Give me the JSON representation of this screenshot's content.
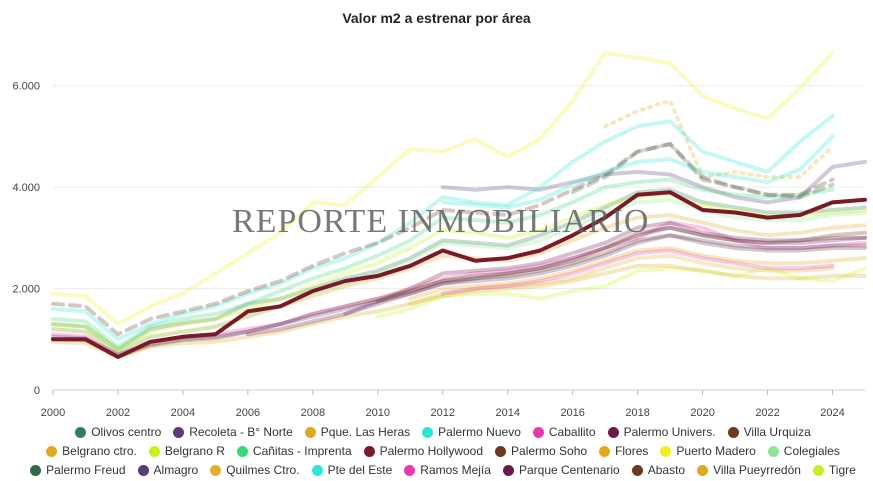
{
  "chart_data": {
    "type": "line",
    "title": "Valor m2 a estrenar por área",
    "watermark": "REPORTE INMOBILIARIO",
    "xlabel": "",
    "ylabel": "",
    "xlim": [
      2000,
      2025
    ],
    "ylim": [
      0,
      7000
    ],
    "x_ticks": [
      2000,
      2002,
      2004,
      2006,
      2008,
      2010,
      2012,
      2014,
      2016,
      2018,
      2020,
      2022,
      2024
    ],
    "x_tick_labels": [
      "2000",
      "2002",
      "2004",
      "2006",
      "2008",
      "2010",
      "2012",
      "2014",
      "2016",
      "2018",
      "2020",
      "2022",
      "2024"
    ],
    "y_ticks": [
      0,
      2000,
      4000,
      6000
    ],
    "y_tick_labels": [
      "0",
      "2.000",
      "4.000",
      "6.000"
    ],
    "grid": true,
    "legend_position": "bottom",
    "highlighted_series": "Palermo Hollywood",
    "x": [
      2000,
      2001,
      2002,
      2003,
      2004,
      2005,
      2006,
      2007,
      2008,
      2009,
      2010,
      2011,
      2012,
      2013,
      2014,
      2015,
      2016,
      2017,
      2018,
      2019,
      2020,
      2021,
      2022,
      2023,
      2024,
      2025
    ],
    "series": [
      {
        "name": "Olivos centro",
        "color": "#2e7d5b",
        "style": "solid",
        "values": [
          1300,
          1250,
          800,
          1200,
          1320,
          1400,
          1700,
          1800,
          2000,
          2200,
          2350,
          2600,
          2950,
          2900,
          2850,
          3050,
          3300,
          3600,
          3900,
          3950,
          3700,
          3600,
          3500,
          3500,
          3550,
          3600
        ]
      },
      {
        "name": "Recoleta - B° Norte",
        "color": "#5b3a7a",
        "style": "solid",
        "values": [
          null,
          null,
          null,
          null,
          null,
          null,
          null,
          null,
          null,
          null,
          null,
          null,
          4000,
          3950,
          4000,
          3950,
          4100,
          4250,
          4300,
          4250,
          4000,
          3800,
          3700,
          3800,
          4400,
          4500
        ]
      },
      {
        "name": "Pque. Las Heras",
        "color": "#e0a820",
        "style": "dotted",
        "values": [
          null,
          null,
          null,
          null,
          null,
          null,
          null,
          null,
          null,
          null,
          null,
          null,
          null,
          null,
          null,
          null,
          null,
          5200,
          5500,
          5700,
          4200,
          4300,
          4200,
          4200,
          4800,
          null
        ]
      },
      {
        "name": "Palermo Nuevo",
        "color": "#2ee6d6",
        "style": "solid",
        "values": [
          1600,
          1550,
          1000,
          1300,
          1500,
          1650,
          1900,
          2100,
          2400,
          2600,
          2900,
          3300,
          3800,
          3700,
          3650,
          4000,
          4500,
          4900,
          5200,
          5300,
          4700,
          4500,
          4300,
          4900,
          5400,
          null
        ]
      },
      {
        "name": "Caballito",
        "color": "#e83ab0",
        "style": "solid",
        "values": [
          1100,
          1050,
          700,
          950,
          1050,
          1100,
          1200,
          1300,
          1500,
          1650,
          1800,
          2000,
          2200,
          2300,
          2350,
          2450,
          2600,
          2800,
          3000,
          3300,
          3200,
          2950,
          2800,
          2800,
          2850,
          2900
        ]
      },
      {
        "name": "Palermo Univers.",
        "color": "#6a1a4a",
        "style": "solid",
        "values": [
          null,
          null,
          null,
          null,
          null,
          null,
          null,
          null,
          null,
          1500,
          1750,
          2000,
          2300,
          2350,
          2400,
          2500,
          2700,
          2900,
          3200,
          3300,
          3100,
          3000,
          2950,
          2950,
          3000,
          3000
        ]
      },
      {
        "name": "Villa Urquiza",
        "color": "#6b3a1f",
        "style": "solid",
        "values": [
          1000,
          980,
          660,
          880,
          980,
          1020,
          1150,
          1300,
          1500,
          1650,
          1800,
          1950,
          2150,
          2250,
          2300,
          2400,
          2550,
          2800,
          3100,
          3200,
          3050,
          2950,
          2900,
          2950,
          3050,
          3100
        ]
      },
      {
        "name": "Belgrano ctro.",
        "color": "#e0a820",
        "style": "solid",
        "values": [
          1200,
          1150,
          750,
          1050,
          1150,
          1250,
          1450,
          1650,
          1850,
          2050,
          2200,
          2400,
          2650,
          2600,
          2550,
          2700,
          2950,
          3200,
          3400,
          3450,
          3300,
          3150,
          3050,
          3100,
          3200,
          3250
        ]
      },
      {
        "name": "Belgrano R",
        "color": "#c6f020",
        "style": "solid",
        "values": [
          1300,
          1250,
          800,
          1150,
          1300,
          1400,
          1600,
          1800,
          2050,
          2300,
          2500,
          2800,
          3150,
          3100,
          3000,
          3150,
          3400,
          3650,
          3800,
          3850,
          3650,
          3550,
          3450,
          3450,
          3500,
          3550
        ]
      },
      {
        "name": "Cañitas - Imprenta",
        "color": "#3ad87a",
        "style": "solid",
        "values": [
          1400,
          1350,
          850,
          1250,
          1400,
          1500,
          1700,
          1950,
          2200,
          2400,
          2650,
          2950,
          3400,
          3350,
          3300,
          3450,
          3700,
          4000,
          4100,
          4150,
          3950,
          3850,
          3800,
          3850,
          3950,
          null
        ]
      },
      {
        "name": "Palermo Hollywood",
        "color": "#7a1a28",
        "style": "solid",
        "values": [
          1000,
          1000,
          650,
          950,
          1050,
          1100,
          1550,
          1650,
          1950,
          2150,
          2250,
          2450,
          2750,
          2550,
          2600,
          2750,
          3050,
          3400,
          3850,
          3900,
          3550,
          3500,
          3400,
          3450,
          3700,
          3750
        ]
      },
      {
        "name": "Palermo Soho",
        "color": "#6b3a1f",
        "style": "dashed",
        "values": [
          1700,
          1650,
          1100,
          1400,
          1550,
          1700,
          1950,
          2150,
          2450,
          2700,
          2900,
          3200,
          3550,
          3500,
          3450,
          3650,
          3950,
          4250,
          4700,
          4850,
          4150,
          4000,
          3850,
          3850,
          4150,
          null
        ]
      },
      {
        "name": "Flores",
        "color": "#e0a820",
        "style": "solid",
        "values": [
          950,
          920,
          650,
          850,
          920,
          950,
          1050,
          1150,
          1300,
          1450,
          1550,
          1700,
          1850,
          1950,
          2000,
          2050,
          2150,
          2300,
          2450,
          2450,
          2350,
          2250,
          2200,
          2200,
          2250,
          2250
        ]
      },
      {
        "name": "Puerto Madero",
        "color": "#f0f020",
        "style": "solid",
        "values": [
          1900,
          1850,
          1300,
          1650,
          1900,
          2300,
          2700,
          3100,
          3700,
          3650,
          4200,
          4750,
          4700,
          4950,
          4600,
          4950,
          5700,
          6650,
          6550,
          6450,
          5800,
          5550,
          5350,
          5950,
          6650,
          null
        ]
      },
      {
        "name": "Colegiales",
        "color": "#8ee68e",
        "style": "solid",
        "values": [
          1200,
          1150,
          750,
          1050,
          1150,
          1250,
          1450,
          1650,
          1900,
          2100,
          2300,
          2550,
          2900,
          2850,
          2800,
          2950,
          3200,
          3500,
          3700,
          3750,
          3550,
          3400,
          3350,
          3350,
          3450,
          3500
        ]
      },
      {
        "name": "Palermo Freud",
        "color": "#2e6b4a",
        "style": "dashed",
        "values": [
          null,
          null,
          null,
          null,
          null,
          null,
          null,
          null,
          null,
          null,
          null,
          null,
          null,
          null,
          null,
          null,
          3900,
          4200,
          4700,
          4850,
          4200,
          4000,
          3850,
          3800,
          4050,
          null
        ]
      },
      {
        "name": "Almagro",
        "color": "#5b3a7a",
        "style": "solid",
        "values": [
          1050,
          1020,
          700,
          900,
          1000,
          1050,
          1150,
          1300,
          1450,
          1600,
          1750,
          1900,
          2100,
          2150,
          2200,
          2300,
          2450,
          2650,
          2900,
          3050,
          2950,
          2850,
          2800,
          2800,
          2850,
          2850
        ]
      },
      {
        "name": "Quilmes Ctro.",
        "color": "#e0b030",
        "style": "solid",
        "values": [
          null,
          null,
          null,
          null,
          null,
          null,
          null,
          null,
          null,
          null,
          null,
          1700,
          1900,
          2000,
          2050,
          2100,
          2200,
          2400,
          2600,
          2650,
          2500,
          2400,
          2350,
          2350,
          2400,
          null
        ]
      },
      {
        "name": "Pte del Este",
        "color": "#2ee6d6",
        "style": "solid",
        "values": [
          null,
          null,
          null,
          null,
          null,
          null,
          null,
          null,
          null,
          null,
          null,
          null,
          3700,
          3650,
          3600,
          3750,
          4050,
          4300,
          4500,
          4550,
          4300,
          4200,
          4100,
          4350,
          5000,
          null
        ]
      },
      {
        "name": "Ramos Mejía",
        "color": "#e83ab0",
        "style": "solid",
        "values": [
          null,
          null,
          null,
          null,
          null,
          null,
          null,
          null,
          null,
          null,
          null,
          null,
          1900,
          2000,
          2050,
          2150,
          2300,
          2500,
          2700,
          2750,
          2600,
          2500,
          2400,
          2400,
          2450,
          null
        ]
      },
      {
        "name": "Parque Centenario",
        "color": "#6a1a4a",
        "style": "solid",
        "values": [
          null,
          null,
          null,
          null,
          null,
          null,
          1100,
          1200,
          1350,
          1500,
          1700,
          1900,
          2100,
          2200,
          2300,
          2400,
          2600,
          2800,
          3050,
          3200,
          3050,
          2950,
          2900,
          2900,
          2950,
          3000
        ]
      },
      {
        "name": "Abasto",
        "color": "#6b3a1f",
        "style": "solid",
        "values": [
          null,
          null,
          null,
          null,
          null,
          null,
          null,
          null,
          null,
          null,
          1750,
          1950,
          2150,
          2200,
          2250,
          2350,
          2500,
          2700,
          2950,
          3050,
          2900,
          2800,
          2750,
          2750,
          2800,
          2800
        ]
      },
      {
        "name": "Villa Pueyrredón",
        "color": "#e0a820",
        "style": "solid",
        "values": [
          null,
          null,
          null,
          null,
          null,
          null,
          null,
          null,
          null,
          null,
          null,
          1800,
          2000,
          2050,
          2100,
          2200,
          2350,
          2550,
          2750,
          2800,
          2650,
          2550,
          2500,
          2500,
          2550,
          2600
        ]
      },
      {
        "name": "Tigre",
        "color": "#c6f020",
        "style": "solid",
        "values": [
          null,
          null,
          null,
          null,
          null,
          null,
          null,
          null,
          null,
          null,
          1450,
          1600,
          1850,
          1900,
          1900,
          1800,
          1950,
          2050,
          2350,
          2400,
          2350,
          2250,
          2400,
          2200,
          2150,
          2400
        ]
      }
    ]
  }
}
